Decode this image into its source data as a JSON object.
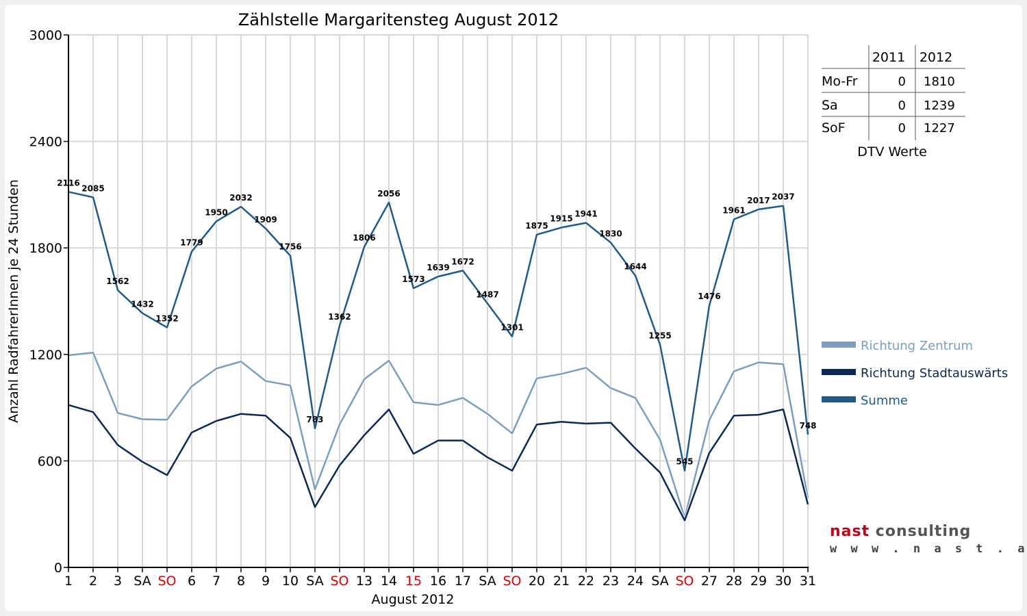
{
  "chart_data": {
    "type": "line",
    "title": "Zählstelle Margaritensteg August 2012",
    "xlabel": "August 2012",
    "ylabel": "Anzahl RadfahrerInnen je 24 Stunden",
    "ylim": [
      0,
      3000
    ],
    "yticks": [
      0,
      600,
      1200,
      1800,
      2400,
      3000
    ],
    "grid": true,
    "legend_position": "right",
    "categories": [
      "1",
      "2",
      "3",
      "SA",
      "SO",
      "6",
      "7",
      "8",
      "9",
      "10",
      "SA",
      "SO",
      "13",
      "14",
      "15",
      "16",
      "17",
      "SA",
      "SO",
      "20",
      "21",
      "22",
      "23",
      "24",
      "SA",
      "SO",
      "27",
      "28",
      "29",
      "30",
      "31"
    ],
    "highlight_categories": [
      4,
      11,
      14,
      18,
      25
    ],
    "highlight_color": "#e00000",
    "series": [
      {
        "name": "Richtung Zentrum",
        "color": "#7a9ec0",
        "values": [
          1195,
          1210,
          870,
          835,
          832,
          1020,
          1120,
          1160,
          1050,
          1025,
          440,
          805,
          1060,
          1165,
          930,
          915,
          955,
          865,
          755,
          1065,
          1090,
          1125,
          1010,
          955,
          720,
          280,
          830,
          1105,
          1155,
          1145,
          390
        ]
      },
      {
        "name": "Richtung Stadtauswärts",
        "color": "#0b2856",
        "values": [
          915,
          875,
          690,
          595,
          520,
          760,
          825,
          865,
          855,
          730,
          340,
          575,
          745,
          890,
          640,
          715,
          715,
          620,
          545,
          805,
          820,
          810,
          815,
          670,
          535,
          265,
          645,
          855,
          860,
          890,
          355
        ]
      },
      {
        "name": "Summe",
        "color": "#1f5a8a",
        "values": [
          2116,
          2085,
          1562,
          1432,
          1352,
          1779,
          1950,
          2032,
          1909,
          1756,
          783,
          1362,
          1806,
          2056,
          1573,
          1639,
          1672,
          1487,
          1301,
          1875,
          1915,
          1941,
          1830,
          1644,
          1255,
          545,
          1476,
          1961,
          2017,
          2037,
          748
        ]
      }
    ],
    "data_labels_series": "Summe"
  },
  "dtv_table": {
    "caption": "DTV Werte",
    "columns": [
      "2011",
      "2012"
    ],
    "rows": [
      {
        "label": "Mo-Fr",
        "v2011": "0",
        "v2012": "1810"
      },
      {
        "label": "Sa",
        "v2011": "0",
        "v2012": "1239"
      },
      {
        "label": "SoF",
        "v2011": "0",
        "v2012": "1227"
      }
    ]
  },
  "logo": {
    "brand_part1": "nast",
    "brand_part2": " consulting",
    "url": "w w w . n a s t . a t"
  }
}
